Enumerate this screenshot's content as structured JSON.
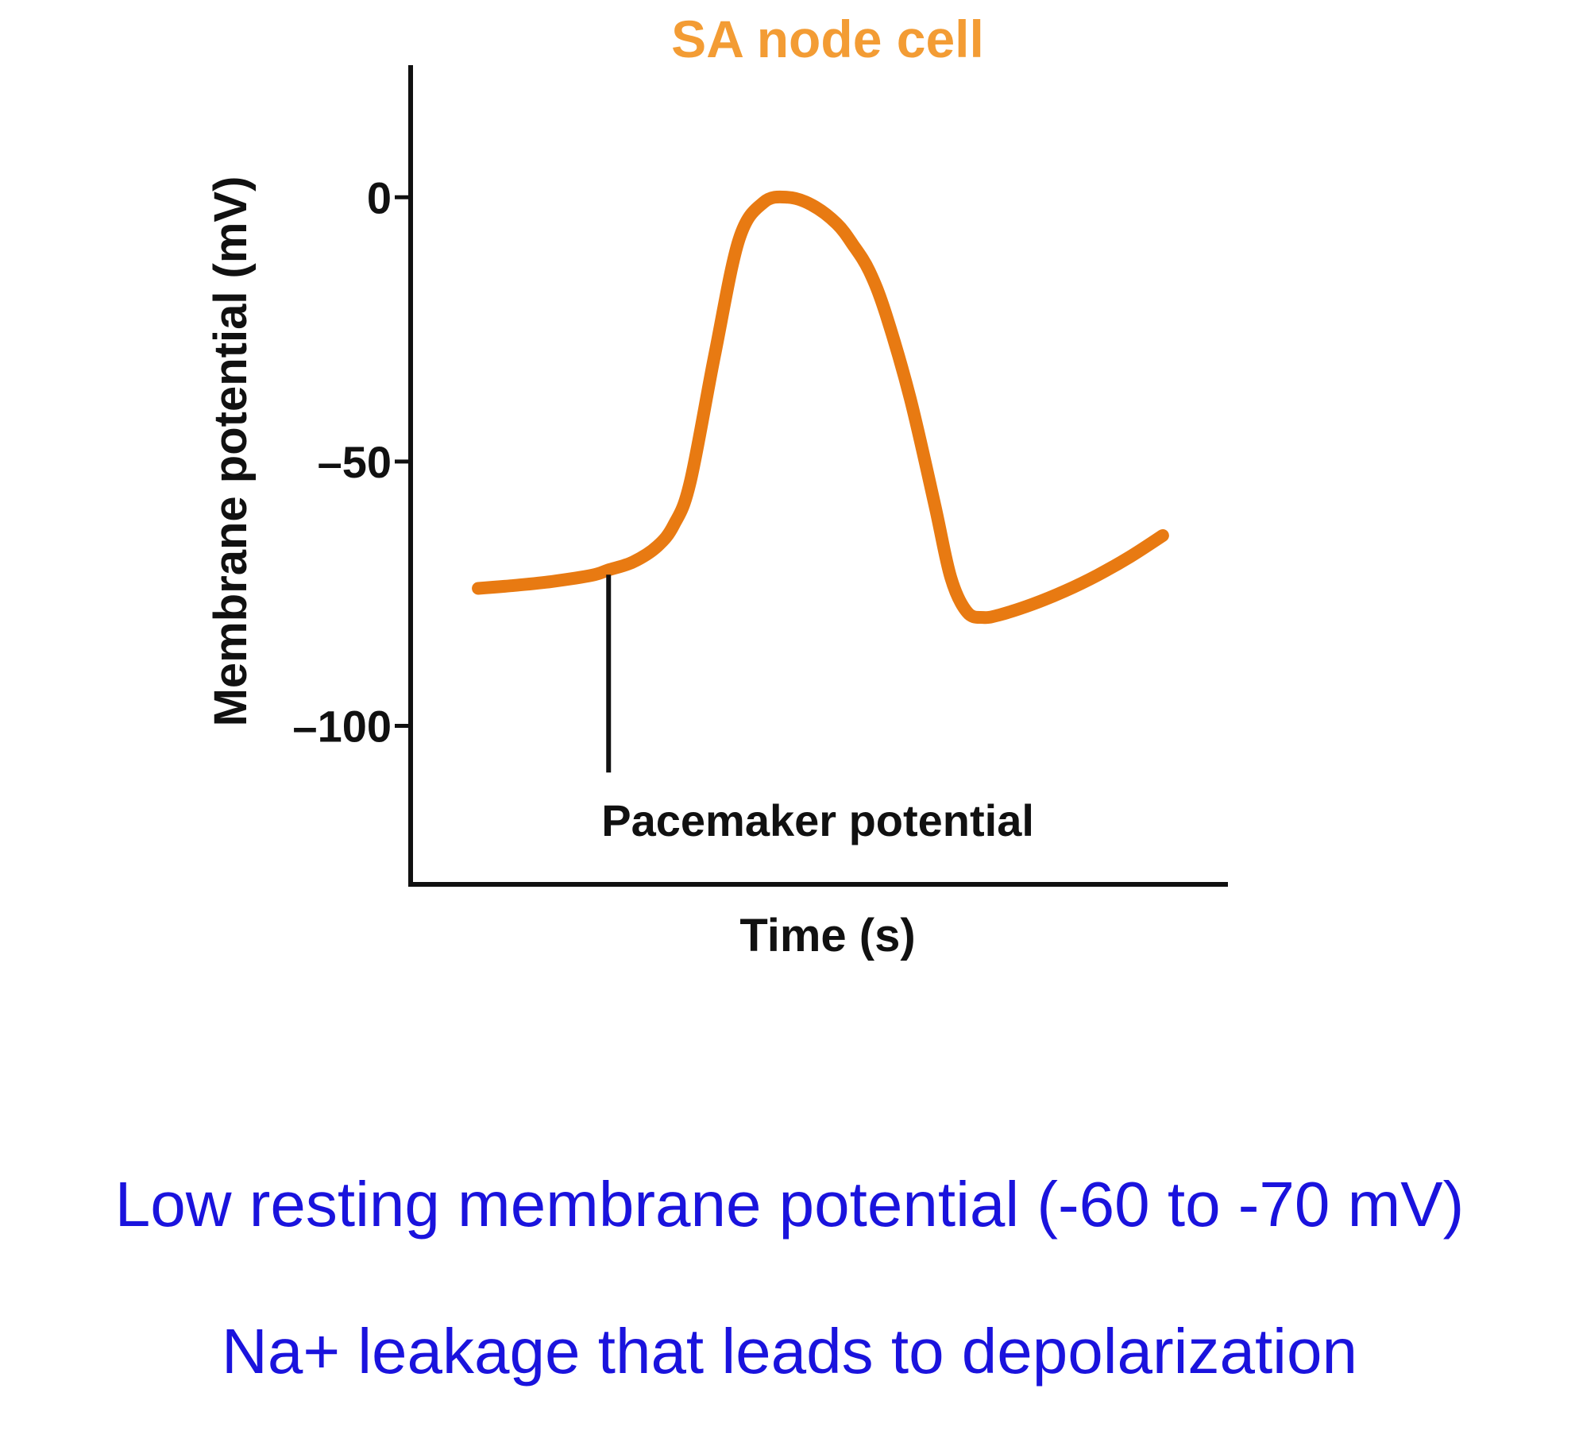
{
  "chart_data": {
    "type": "line",
    "title": "SA node cell",
    "xlabel": "Time (s)",
    "ylabel": "Membrane potential (mV)",
    "yticks": [
      0,
      -50,
      -100
    ],
    "ytick_labels": [
      "0",
      "–50",
      "–100"
    ],
    "ylim": [
      -130,
      25
    ],
    "xlim": [
      0,
      100
    ],
    "series": [
      {
        "x": [
          8,
          12,
          17,
          22,
          24,
          27,
          30,
          32,
          34,
          37,
          40,
          43,
          46,
          49,
          52,
          54,
          56,
          58,
          61,
          64,
          66,
          68,
          70,
          72,
          76,
          80,
          84,
          88,
          92
        ],
        "values": [
          -74,
          -73.5,
          -72.7,
          -71.5,
          -70.5,
          -69,
          -66,
          -62,
          -54,
          -30,
          -8,
          -1,
          0,
          -1.5,
          -5,
          -9,
          -14,
          -22,
          -38,
          -58,
          -72,
          -78.5,
          -79.5,
          -79,
          -77,
          -74.5,
          -71.5,
          -68,
          -64
        ],
        "color": "#e87a12"
      }
    ],
    "annotations": [
      {
        "text": "Pacemaker potential",
        "x": 24,
        "y": -70.5
      }
    ],
    "grid": false,
    "title_color": "#f39c34"
  },
  "captions": {
    "line1": "Low resting membrane potential (-60 to -70 mV)",
    "line2": "Na+ leakage that leads to depolarization",
    "color": "#1a13dd"
  }
}
